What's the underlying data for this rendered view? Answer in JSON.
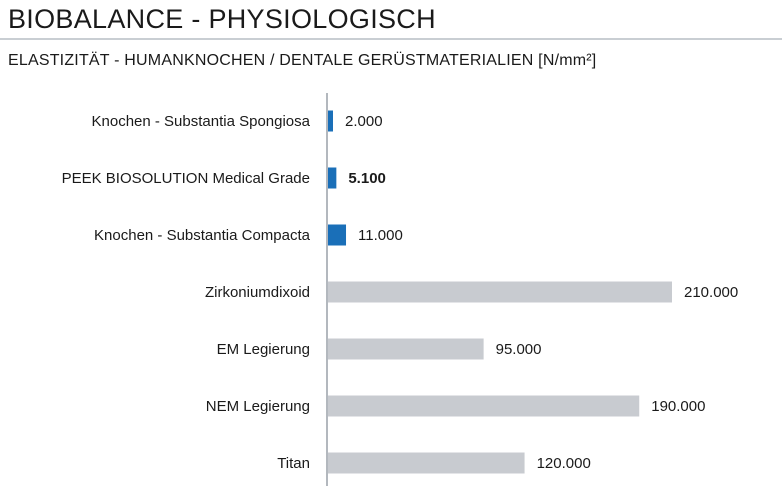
{
  "header": {
    "title": "BIOBALANCE - PHYSIOLOGISCH",
    "subtitle": "ELASTIZITÄT - HUMANKNOCHEN / DENTALE GERÜSTMATERIALIEN [N/mm²]"
  },
  "colors": {
    "highlight": "#1a6fb8",
    "neutral": "#c8cbd0",
    "axis": "#9aa1a8"
  },
  "chart_data": {
    "type": "bar",
    "orientation": "horizontal",
    "title": "BIOBALANCE - PHYSIOLOGISCH",
    "subtitle": "ELASTIZITÄT - HUMANKNOCHEN / DENTALE GERÜSTMATERIALIEN [N/mm²]",
    "unit": "N/mm²",
    "grid": false,
    "categories": [
      "Knochen - Substantia Spongiosa",
      "PEEK BIOSOLUTION Medical Grade",
      "Knochen - Substantia Compacta",
      "Zirkoniumdixoid",
      "EM Legierung",
      "NEM Legierung",
      "Titan"
    ],
    "values": [
      2000,
      5100,
      11000,
      210000,
      95000,
      190000,
      120000
    ],
    "value_labels": [
      "2.000",
      "5.100",
      "11.000",
      "210.000",
      "95.000",
      "190.000",
      "120.000"
    ],
    "highlighted": [
      true,
      true,
      true,
      false,
      false,
      false,
      false
    ],
    "bold_label": [
      false,
      true,
      false,
      false,
      false,
      false,
      false
    ],
    "xlim": [
      0,
      210000
    ]
  }
}
